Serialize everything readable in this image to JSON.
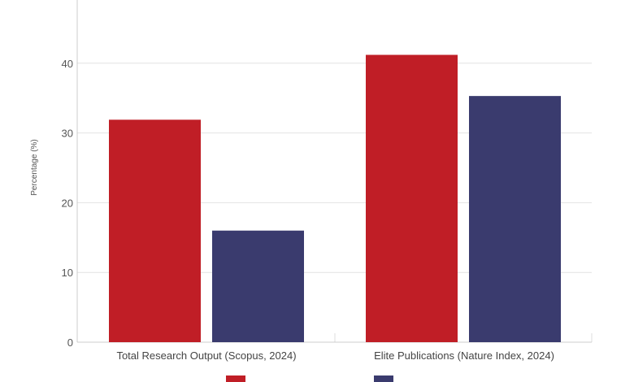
{
  "chart_data": {
    "type": "bar",
    "title": "",
    "xlabel": "",
    "ylabel": "Percentage (%)",
    "categories": [
      "Total Research Output (Scopus, 2024)",
      "Elite Publications (Nature Index, 2024)"
    ],
    "series": [
      {
        "values": [
          31.9,
          41.2
        ],
        "color": "#c01e26"
      },
      {
        "values": [
          16.0,
          35.3
        ],
        "color": "#3a3b6e"
      }
    ],
    "ylim": [
      0,
      50
    ],
    "yticks": [
      0,
      10,
      20,
      30,
      40
    ],
    "grid": true,
    "legend_position": "bottom"
  }
}
